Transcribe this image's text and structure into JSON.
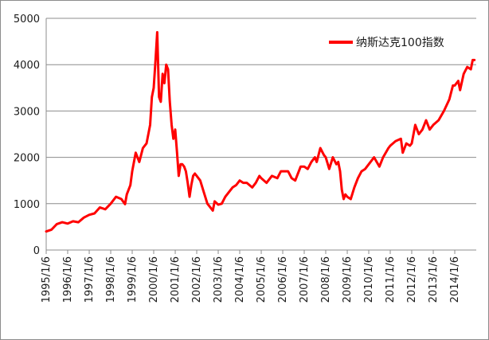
{
  "chart_data": {
    "type": "line",
    "title": "",
    "xlabel": "",
    "ylabel": "",
    "ylim": [
      0,
      5000
    ],
    "yticks": [
      0,
      1000,
      2000,
      3000,
      4000,
      5000
    ],
    "xticks": [
      "1995/1/6",
      "1996/1/6",
      "1997/1/6",
      "1998/1/6",
      "1999/1/6",
      "2000/1/6",
      "2001/1/6",
      "2002/1/6",
      "2003/1/6",
      "2004/1/6",
      "2005/1/6",
      "2006/1/6",
      "2007/1/6",
      "2008/1/6",
      "2009/1/6",
      "2010/1/6",
      "2011/1/6",
      "2012/1/6",
      "2013/1/6",
      "2014/1/6"
    ],
    "xlim": [
      "1995/1/6",
      "2015/1/6"
    ],
    "grid": "horizontal",
    "legend_position": "top-right",
    "series": [
      {
        "name": "纳斯达克100指数",
        "color": "#ff0000",
        "points": [
          [
            "1995/1/6",
            400
          ],
          [
            "1995/4/6",
            440
          ],
          [
            "1995/7/6",
            560
          ],
          [
            "1995/10/6",
            600
          ],
          [
            "1996/1/6",
            570
          ],
          [
            "1996/4/6",
            620
          ],
          [
            "1996/7/6",
            600
          ],
          [
            "1996/10/6",
            700
          ],
          [
            "1997/1/6",
            760
          ],
          [
            "1997/4/6",
            790
          ],
          [
            "1997/7/6",
            920
          ],
          [
            "1997/10/6",
            880
          ],
          [
            "1998/1/6",
            1000
          ],
          [
            "1998/4/6",
            1150
          ],
          [
            "1998/7/6",
            1100
          ],
          [
            "1998/9/6",
            990
          ],
          [
            "1998/10/6",
            1200
          ],
          [
            "1998/12/6",
            1400
          ],
          [
            "1999/1/6",
            1700
          ],
          [
            "1999/3/6",
            2100
          ],
          [
            "1999/5/6",
            1900
          ],
          [
            "1999/7/6",
            2200
          ],
          [
            "1999/9/6",
            2300
          ],
          [
            "1999/11/6",
            2700
          ],
          [
            "1999/12/6",
            3300
          ],
          [
            "2000/1/6",
            3500
          ],
          [
            "2000/2/6",
            4100
          ],
          [
            "2000/3/6",
            4700
          ],
          [
            "2000/4/6",
            3300
          ],
          [
            "2000/5/6",
            3200
          ],
          [
            "2000/6/6",
            3800
          ],
          [
            "2000/7/6",
            3600
          ],
          [
            "2000/8/6",
            4000
          ],
          [
            "2000/9/6",
            3900
          ],
          [
            "2000/10/6",
            3200
          ],
          [
            "2000/11/6",
            2700
          ],
          [
            "2000/12/6",
            2400
          ],
          [
            "2001/1/6",
            2600
          ],
          [
            "2001/2/6",
            2100
          ],
          [
            "2001/3/6",
            1600
          ],
          [
            "2001/4/6",
            1850
          ],
          [
            "2001/5/6",
            1850
          ],
          [
            "2001/6/6",
            1800
          ],
          [
            "2001/7/6",
            1700
          ],
          [
            "2001/8/6",
            1450
          ],
          [
            "2001/9/6",
            1150
          ],
          [
            "2001/10/6",
            1400
          ],
          [
            "2001/11/6",
            1600
          ],
          [
            "2001/12/6",
            1650
          ],
          [
            "2002/1/6",
            1600
          ],
          [
            "2002/3/6",
            1500
          ],
          [
            "2002/5/6",
            1250
          ],
          [
            "2002/7/6",
            1000
          ],
          [
            "2002/8/6",
            950
          ],
          [
            "2002/10/6",
            850
          ],
          [
            "2002/11/6",
            1050
          ],
          [
            "2003/1/6",
            980
          ],
          [
            "2003/3/6",
            1000
          ],
          [
            "2003/5/6",
            1150
          ],
          [
            "2003/7/6",
            1250
          ],
          [
            "2003/9/6",
            1350
          ],
          [
            "2003/11/6",
            1400
          ],
          [
            "2004/1/6",
            1500
          ],
          [
            "2004/3/6",
            1450
          ],
          [
            "2004/5/6",
            1450
          ],
          [
            "2004/8/6",
            1350
          ],
          [
            "2004/10/6",
            1450
          ],
          [
            "2004/12/6",
            1600
          ],
          [
            "2005/1/6",
            1550
          ],
          [
            "2005/4/6",
            1450
          ],
          [
            "2005/7/6",
            1600
          ],
          [
            "2005/10/6",
            1550
          ],
          [
            "2005/12/6",
            1700
          ],
          [
            "2006/1/6",
            1700
          ],
          [
            "2006/4/6",
            1700
          ],
          [
            "2006/6/6",
            1550
          ],
          [
            "2006/8/6",
            1500
          ],
          [
            "2006/11/6",
            1800
          ],
          [
            "2007/1/6",
            1800
          ],
          [
            "2007/3/6",
            1750
          ],
          [
            "2007/5/6",
            1900
          ],
          [
            "2007/7/6",
            2000
          ],
          [
            "2007/8/6",
            1900
          ],
          [
            "2007/10/6",
            2200
          ],
          [
            "2007/12/6",
            2050
          ],
          [
            "2008/1/6",
            2000
          ],
          [
            "2008/3/6",
            1750
          ],
          [
            "2008/5/6",
            2000
          ],
          [
            "2008/7/6",
            1850
          ],
          [
            "2008/8/6",
            1900
          ],
          [
            "2008/9/6",
            1700
          ],
          [
            "2008/10/6",
            1300
          ],
          [
            "2008/11/6",
            1100
          ],
          [
            "2008/12/6",
            1200
          ],
          [
            "2009/1/6",
            1150
          ],
          [
            "2009/3/6",
            1100
          ],
          [
            "2009/5/6",
            1350
          ],
          [
            "2009/7/6",
            1550
          ],
          [
            "2009/9/6",
            1700
          ],
          [
            "2009/11/6",
            1750
          ],
          [
            "2010/1/6",
            1850
          ],
          [
            "2010/4/6",
            2000
          ],
          [
            "2010/7/6",
            1800
          ],
          [
            "2010/9/6",
            2000
          ],
          [
            "2010/12/6",
            2200
          ],
          [
            "2011/1/6",
            2250
          ],
          [
            "2011/4/6",
            2350
          ],
          [
            "2011/7/6",
            2400
          ],
          [
            "2011/8/6",
            2100
          ],
          [
            "2011/10/6",
            2300
          ],
          [
            "2011/12/6",
            2250
          ],
          [
            "2012/1/6",
            2300
          ],
          [
            "2012/3/6",
            2700
          ],
          [
            "2012/5/6",
            2500
          ],
          [
            "2012/7/6",
            2600
          ],
          [
            "2012/9/6",
            2800
          ],
          [
            "2012/11/6",
            2600
          ],
          [
            "2013/1/6",
            2700
          ],
          [
            "2013/4/6",
            2800
          ],
          [
            "2013/7/6",
            3000
          ],
          [
            "2013/10/6",
            3250
          ],
          [
            "2013/12/6",
            3550
          ],
          [
            "2014/1/6",
            3550
          ],
          [
            "2014/3/6",
            3650
          ],
          [
            "2014/4/6",
            3450
          ],
          [
            "2014/6/6",
            3800
          ],
          [
            "2014/8/6",
            3950
          ],
          [
            "2014/10/6",
            3900
          ],
          [
            "2014/11/6",
            4100
          ],
          [
            "2014/12/6",
            4100
          ]
        ]
      }
    ]
  }
}
